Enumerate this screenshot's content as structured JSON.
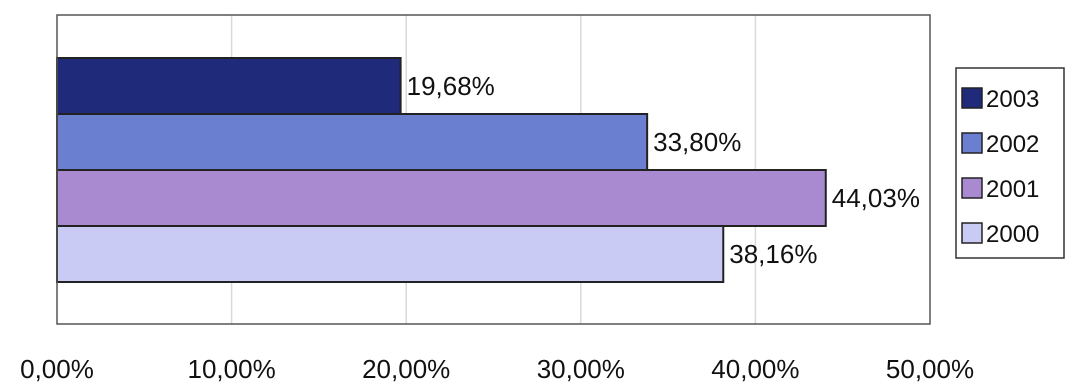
{
  "chart_data": {
    "type": "bar",
    "orientation": "horizontal",
    "categories": [
      ""
    ],
    "series": [
      {
        "name": "2003",
        "values": [
          19.68
        ],
        "label": "19,68%",
        "color": "#1f2a7a"
      },
      {
        "name": "2002",
        "values": [
          33.8
        ],
        "label": "33,80%",
        "color": "#6a7fd0"
      },
      {
        "name": "2001",
        "values": [
          44.03
        ],
        "label": "44,03%",
        "color": "#a98ad0"
      },
      {
        "name": "2000",
        "values": [
          38.16
        ],
        "label": "38,16%",
        "color": "#c9cbf5"
      }
    ],
    "xlim": [
      0,
      50
    ],
    "xticks": [
      {
        "value": 0,
        "label": "0,00%"
      },
      {
        "value": 10,
        "label": "10,00%"
      },
      {
        "value": 20,
        "label": "20,00%"
      },
      {
        "value": 30,
        "label": "30,00%"
      },
      {
        "value": 40,
        "label": "40,00%"
      },
      {
        "value": 50,
        "label": "50,00%"
      }
    ],
    "title": "",
    "xlabel": "",
    "ylabel": "",
    "grid": "vertical",
    "legend": {
      "position": "right",
      "entries": [
        "2003",
        "2002",
        "2001",
        "2000"
      ]
    },
    "colors": {
      "plot_border": "#555555",
      "gridline": "#d9d9d9",
      "bar_border": "#222222"
    }
  }
}
